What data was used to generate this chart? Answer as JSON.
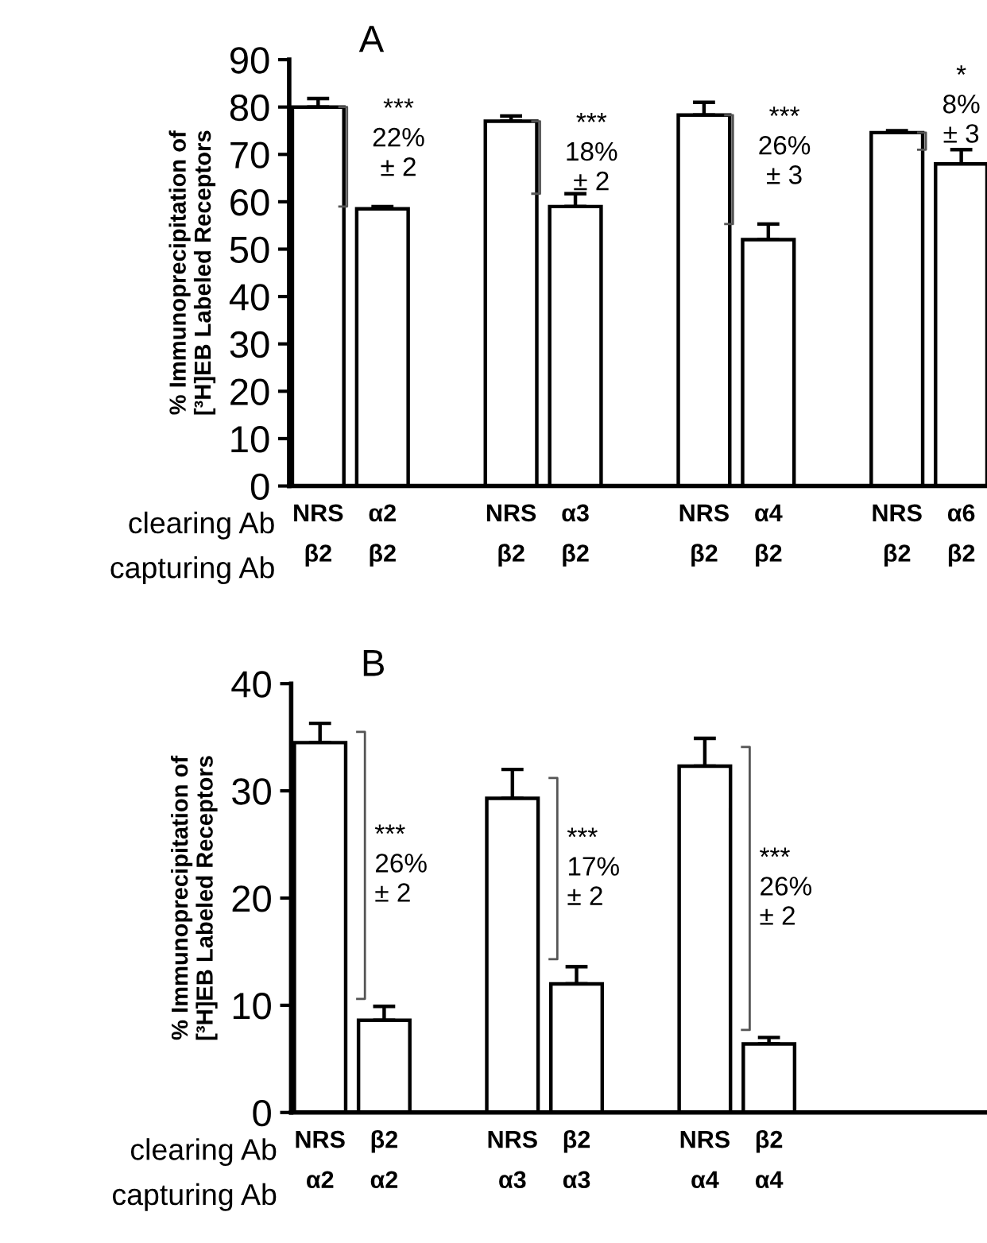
{
  "chart_data": [
    {
      "type": "bar",
      "title": "A",
      "ylabel": "% Immunoprecipitation of\n[³H]EB Labeled Receptors",
      "categories": [
        "NRS\nβ2",
        "α2\nβ2",
        "NRS\nβ2",
        "α3\nβ2",
        "NRS\nβ2",
        "α4\nβ2",
        "NRS\nβ2",
        "α6\nβ2"
      ],
      "values": [
        80,
        58.5,
        77,
        59,
        78.3,
        52,
        74.6,
        68
      ],
      "errors": [
        [
          80,
          81.8
        ],
        [
          58.5,
          59
        ],
        [
          77,
          78.1
        ],
        [
          59,
          61.7
        ],
        [
          78.3,
          81
        ],
        [
          52,
          55.3
        ],
        [
          74.6,
          75
        ],
        [
          68,
          71
        ]
      ],
      "color": "#ffffff",
      "ylim": [
        0,
        90
      ],
      "yticks": [
        0,
        10,
        20,
        30,
        40,
        50,
        60,
        70,
        80,
        90
      ],
      "grid": false,
      "annotations": [
        "clearing Ab",
        "capturing Ab",
        "***\n22%\n± 2",
        "***\n18%\n± 2",
        "***\n26%\n± 3",
        "*\n8%\n± 3"
      ]
    },
    {
      "type": "bar",
      "title": "B",
      "ylabel": "% Immunoprecipitation of\n[³H]EB Labeled Receptors",
      "categories": [
        "NRS\nα2",
        "β2\nα2",
        "NRS\nα3",
        "β2\nα3",
        "NRS\nα4",
        "β2\nα4"
      ],
      "values": [
        34.5,
        8.6,
        29.3,
        12,
        32.3,
        6.4
      ],
      "errors": [
        [
          34.5,
          36.3
        ],
        [
          8.6,
          9.9
        ],
        [
          29.3,
          32
        ],
        [
          12,
          13.6
        ],
        [
          32.3,
          34.9
        ],
        [
          6.4,
          7
        ]
      ],
      "color": "#ffffff",
      "ylim": [
        0,
        40
      ],
      "yticks": [
        0,
        10,
        20,
        30,
        40
      ],
      "grid": false,
      "annotations": [
        "clearing Ab",
        "capturing Ab",
        "***\n26%\n± 2",
        "***\n17%\n± 2",
        "***\n26%\n± 2"
      ]
    }
  ]
}
